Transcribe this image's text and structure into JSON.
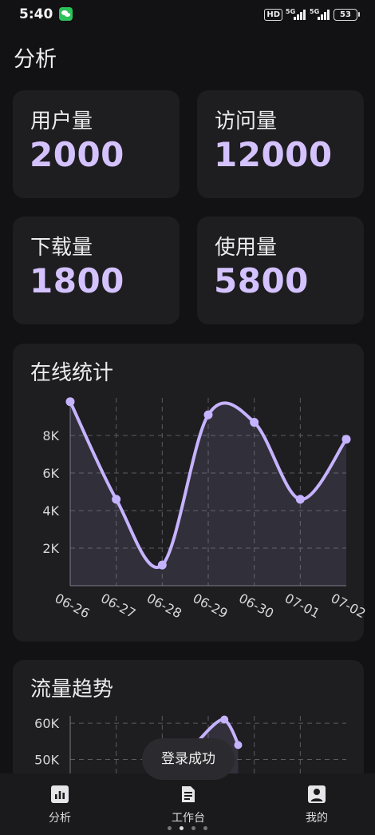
{
  "status_bar": {
    "time": "5:40",
    "hd_label": "HD",
    "network_1": "5G",
    "network_2": "5G",
    "battery": "53",
    "icons": [
      "wechat-icon",
      "signal-icon",
      "battery-icon"
    ]
  },
  "page": {
    "title": "分析"
  },
  "stats": [
    {
      "label": "用户量",
      "value": "2000"
    },
    {
      "label": "访问量",
      "value": "12000"
    },
    {
      "label": "下载量",
      "value": "1800"
    },
    {
      "label": "使用量",
      "value": "5800"
    }
  ],
  "charts": {
    "online": {
      "title": "在线统计"
    },
    "traffic": {
      "title": "流量趋势"
    }
  },
  "chart_data": [
    {
      "type": "area",
      "title": "在线统计",
      "categories": [
        "06-26",
        "06-27",
        "06-28",
        "06-29",
        "06-30",
        "07-01",
        "07-02"
      ],
      "values": [
        9800,
        4600,
        1100,
        9100,
        8700,
        4600,
        7800
      ],
      "yticks": [
        "2K",
        "4K",
        "6K",
        "8K"
      ],
      "ylim": [
        0,
        10000
      ],
      "grid": true,
      "color": "#c6b3ff"
    },
    {
      "type": "area",
      "title": "流量趋势",
      "yticks": [
        "50K",
        "60K"
      ],
      "ylim": [
        40000,
        62000
      ],
      "grid": true,
      "color": "#c6b3ff",
      "visible_points": [
        {
          "x": 2.55,
          "y": 51500
        },
        {
          "x": 3.35,
          "y": 61000
        },
        {
          "x": 3.65,
          "y": 54000
        }
      ]
    }
  ],
  "toast": {
    "message": "登录成功"
  },
  "bottom_nav": [
    {
      "label": "分析",
      "icon": "bar-chart-icon",
      "active": true
    },
    {
      "label": "工作台",
      "icon": "document-icon",
      "active": false
    },
    {
      "label": "我的",
      "icon": "person-icon",
      "active": false
    }
  ],
  "pager": {
    "count": 4,
    "active": 1
  },
  "colors": {
    "background": "#121113",
    "card": "#1e1d20",
    "accent": "#d4c2ff",
    "line": "#c6b3ff"
  }
}
